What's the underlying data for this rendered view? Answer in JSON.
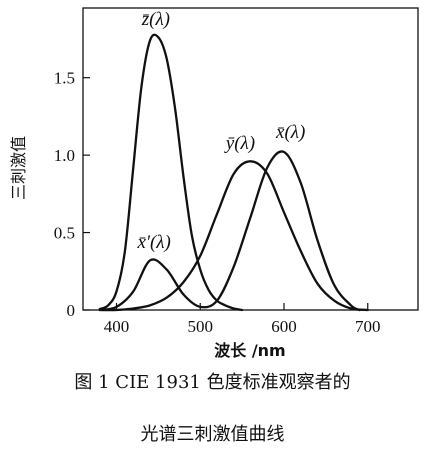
{
  "chart_data": {
    "type": "line",
    "title": "",
    "xlabel": "波长 /nm",
    "ylabel": "三刺激值",
    "xlim": [
      360,
      760
    ],
    "ylim": [
      0,
      1.95
    ],
    "xticks": [
      400,
      500,
      600,
      700
    ],
    "yticks": [
      0,
      0.5,
      1.0,
      1.5
    ],
    "ytick_labels": [
      "0",
      "0.5",
      "1.0",
      "1.5"
    ],
    "grid": false,
    "series": [
      {
        "name": "z̄(λ)",
        "x": [
          380,
          390,
          400,
          410,
          420,
          430,
          440,
          450,
          460,
          470,
          480,
          490,
          500,
          510,
          520,
          530,
          540,
          550
        ],
        "y": [
          0.006,
          0.03,
          0.12,
          0.38,
          0.92,
          1.45,
          1.74,
          1.76,
          1.62,
          1.3,
          0.86,
          0.48,
          0.26,
          0.13,
          0.06,
          0.03,
          0.01,
          0.0
        ]
      },
      {
        "name": "ȳ(λ)",
        "x": [
          380,
          400,
          420,
          440,
          460,
          480,
          500,
          520,
          540,
          560,
          580,
          600,
          620,
          640,
          660,
          680,
          700
        ],
        "y": [
          0.0,
          0.0,
          0.01,
          0.03,
          0.08,
          0.18,
          0.35,
          0.62,
          0.88,
          0.96,
          0.88,
          0.63,
          0.38,
          0.17,
          0.06,
          0.01,
          0.0
        ]
      },
      {
        "name": "x̄(λ)",
        "x": [
          380,
          400,
          420,
          440,
          460,
          480,
          500,
          520,
          540,
          560,
          580,
          600,
          620,
          640,
          660,
          680,
          690
        ],
        "y": [
          0.0,
          0.02,
          0.12,
          0.32,
          0.26,
          0.1,
          0.02,
          0.06,
          0.28,
          0.6,
          0.92,
          1.02,
          0.82,
          0.45,
          0.16,
          0.03,
          0.0
        ]
      }
    ],
    "annotations": [
      {
        "text": "z̄(λ)",
        "x": 447,
        "y": 1.84
      },
      {
        "text": "ȳ(λ)",
        "x": 548,
        "y": 1.04
      },
      {
        "text": "x̄(λ)",
        "x": 608,
        "y": 1.11
      },
      {
        "text": "x̄'(λ)",
        "x": 445,
        "y": 0.4
      }
    ]
  },
  "caption": {
    "line1": "图 1  CIE 1931 色度标准观察者的",
    "line2": "光谱三刺激值曲线"
  }
}
